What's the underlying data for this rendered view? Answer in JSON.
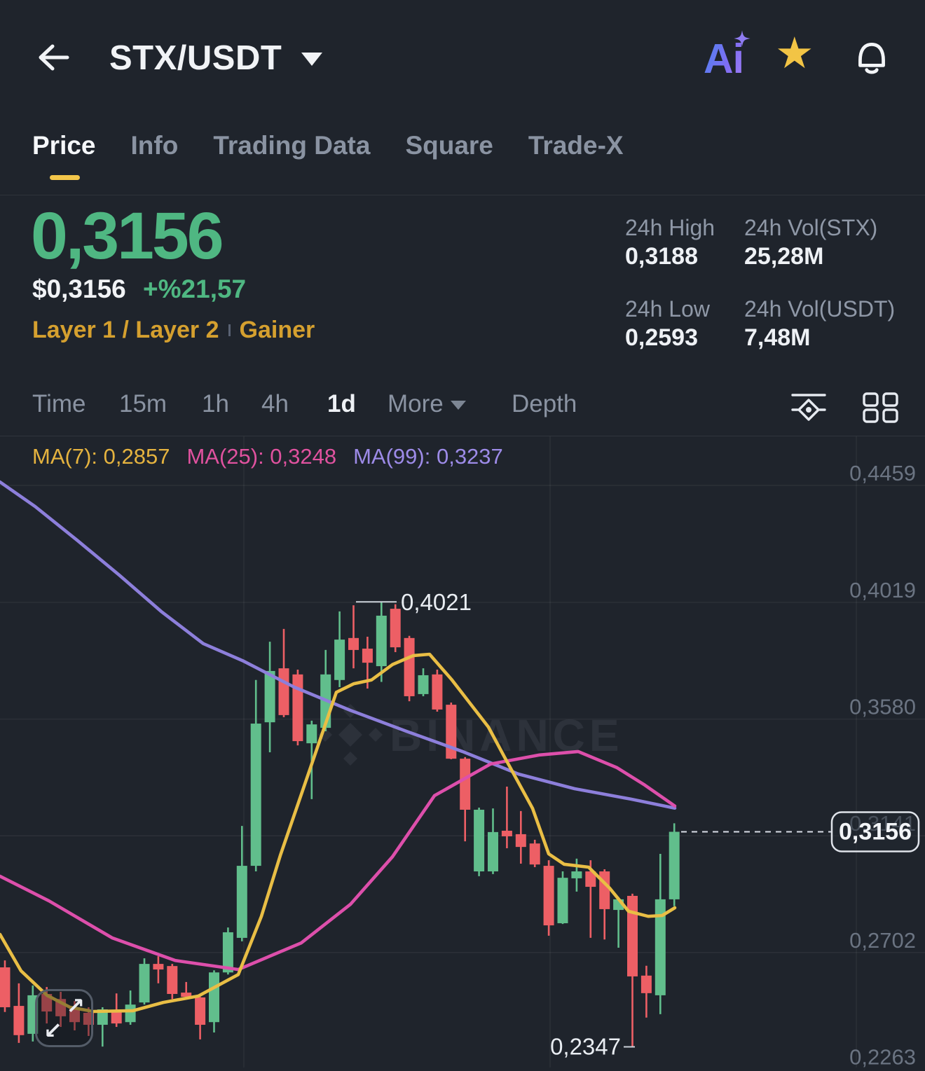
{
  "header": {
    "symbol": "STX/USDT",
    "icons": {
      "back": "back-arrow-icon",
      "symbol_caret": "chevron-down-icon",
      "ai": "ai-assistant-icon",
      "favorite": "star-icon",
      "alerts": "bell-icon"
    }
  },
  "tabs": {
    "items": [
      "Price",
      "Info",
      "Trading Data",
      "Square",
      "Trade-X"
    ],
    "active": "Price"
  },
  "summary": {
    "last_price": "0,3156",
    "usd_price": "$0,3156",
    "change": "+%21,57",
    "tags": [
      "Layer 1 / Layer 2",
      "Gainer"
    ],
    "stats": [
      {
        "label": "24h High",
        "value": "0,3188"
      },
      {
        "label": "24h Vol(STX)",
        "value": "25,28M"
      },
      {
        "label": "24h Low",
        "value": "0,2593"
      },
      {
        "label": "24h Vol(USDT)",
        "value": "7,48M"
      }
    ]
  },
  "toolbar": {
    "timeframes": [
      "Time",
      "15m",
      "1h",
      "4h",
      "1d"
    ],
    "active": "1d",
    "more_label": "More",
    "depth_label": "Depth",
    "icons": [
      "indicator-settings-icon",
      "layout-grid-icon"
    ]
  },
  "colors": {
    "up": "#61BE8C",
    "down": "#ED5F65",
    "price_green": "#4FB782",
    "gold": "#D5A02F",
    "accent_yellow": "#F3C64A",
    "ma7": "#E9BE45",
    "ma25": "#DD4FAB",
    "ma99": "#8D7FDB"
  },
  "chart_data": {
    "type": "candlestick",
    "pair": "STX/USDT",
    "interval": "1d",
    "watermark": "BINANCE",
    "grid": true,
    "legend_position": "top-left",
    "ma_legend": [
      {
        "label": "MA(7):",
        "value": "0,2857",
        "color": "#E5B33F"
      },
      {
        "label": "MA(25):",
        "value": "0,3248",
        "color": "#E0529F"
      },
      {
        "label": "MA(99):",
        "value": "0,3237",
        "color": "#9D8BE8"
      }
    ],
    "y_axis_ticks": [
      {
        "label": "0,4459",
        "price": 0.4459
      },
      {
        "label": "0,4019",
        "price": 0.4019
      },
      {
        "label": "0,3580",
        "price": 0.358
      },
      {
        "label": "0,3141",
        "price": 0.3141
      },
      {
        "label": "0,2702",
        "price": 0.2702
      },
      {
        "label": "0,2263",
        "price": 0.2263
      }
    ],
    "ylim": [
      0.2263,
      0.4459
    ],
    "annotations": {
      "high": {
        "label": "0,4021",
        "price": 0.4021
      },
      "low": {
        "label": "0,2347",
        "price": 0.2347
      }
    },
    "last_price": {
      "label": "0,3156",
      "price": 0.3156
    },
    "candles_ohlc": [
      [
        0.2646,
        0.2672,
        0.2478,
        0.2496
      ],
      [
        0.2501,
        0.2586,
        0.2362,
        0.2391
      ],
      [
        0.2396,
        0.2578,
        0.2367,
        0.2541
      ],
      [
        0.2546,
        0.2572,
        0.2435,
        0.248
      ],
      [
        0.2527,
        0.2554,
        0.2422,
        0.2462
      ],
      [
        0.2493,
        0.2519,
        0.2409,
        0.244
      ],
      [
        0.2475,
        0.2496,
        0.2388,
        0.243
      ],
      [
        0.243,
        0.2496,
        0.2348,
        0.2488
      ],
      [
        0.2483,
        0.2548,
        0.2422,
        0.2435
      ],
      [
        0.244,
        0.2559,
        0.243,
        0.2506
      ],
      [
        0.2514,
        0.268,
        0.2506,
        0.2659
      ],
      [
        0.2659,
        0.2688,
        0.2586,
        0.2638
      ],
      [
        0.2651,
        0.2659,
        0.2527,
        0.2546
      ],
      [
        0.2551,
        0.2591,
        0.2533,
        0.2535
      ],
      [
        0.2533,
        0.2535,
        0.2375,
        0.243
      ],
      [
        0.244,
        0.2635,
        0.2401,
        0.2627
      ],
      [
        0.2627,
        0.2796,
        0.2619,
        0.2778
      ],
      [
        0.2757,
        0.3178,
        0.2744,
        0.3028
      ],
      [
        0.3028,
        0.3727,
        0.3007,
        0.3563
      ],
      [
        0.3568,
        0.3871,
        0.3455,
        0.3761
      ],
      [
        0.3771,
        0.3919,
        0.3587,
        0.3595
      ],
      [
        0.3748,
        0.3766,
        0.3481,
        0.3497
      ],
      [
        0.3489,
        0.3574,
        0.3279,
        0.356
      ],
      [
        0.3547,
        0.384,
        0.3534,
        0.3748
      ],
      [
        0.3727,
        0.3985,
        0.37,
        0.3879
      ],
      [
        0.3885,
        0.4008,
        0.3771,
        0.384
      ],
      [
        0.3845,
        0.389,
        0.3695,
        0.3792
      ],
      [
        0.3779,
        0.4021,
        0.372,
        0.3969
      ],
      [
        0.3995,
        0.4012,
        0.3832,
        0.385
      ],
      [
        0.3885,
        0.3893,
        0.3647,
        0.3666
      ],
      [
        0.3674,
        0.3771,
        0.3666,
        0.3745
      ],
      [
        0.3748,
        0.3766,
        0.3608,
        0.3616
      ],
      [
        0.3634,
        0.3642,
        0.3429,
        0.3431
      ],
      [
        0.3431,
        0.3437,
        0.312,
        0.3239
      ],
      [
        0.3007,
        0.3247,
        0.2989,
        0.3239
      ],
      [
        0.3007,
        0.3244,
        0.2997,
        0.3155
      ],
      [
        0.316,
        0.3326,
        0.3094,
        0.3139
      ],
      [
        0.3147,
        0.3234,
        0.3036,
        0.3099
      ],
      [
        0.3112,
        0.3126,
        0.3023,
        0.3033
      ],
      [
        0.3028,
        0.3049,
        0.2765,
        0.2804
      ],
      [
        0.2812,
        0.3007,
        0.2809,
        0.2983
      ],
      [
        0.2981,
        0.3055,
        0.2931,
        0.3007
      ],
      [
        0.3007,
        0.3049,
        0.2757,
        0.2949
      ],
      [
        0.3007,
        0.3015,
        0.2751,
        0.2865
      ],
      [
        0.2862,
        0.291,
        0.272,
        0.2902
      ],
      [
        0.2915,
        0.2923,
        0.2347,
        0.2612
      ],
      [
        0.2615,
        0.2652,
        0.2457,
        0.2549
      ],
      [
        0.2541,
        0.3073,
        0.247,
        0.2902
      ],
      [
        0.2902,
        0.3188,
        0.2876,
        0.3156
      ]
    ],
    "ma_lines": [
      {
        "name": "MA(7)",
        "period": 7,
        "color": "#E9BE45",
        "points": [
          [
            0,
            0.277
          ],
          [
            30,
            0.2633
          ],
          [
            67,
            0.2541
          ],
          [
            100,
            0.2496
          ],
          [
            133,
            0.248
          ],
          [
            190,
            0.2483
          ],
          [
            233,
            0.2514
          ],
          [
            283,
            0.2538
          ],
          [
            340,
            0.2619
          ],
          [
            373,
            0.2838
          ],
          [
            400,
            0.3067
          ],
          [
            430,
            0.3297
          ],
          [
            455,
            0.3489
          ],
          [
            480,
            0.3681
          ],
          [
            505,
            0.3713
          ],
          [
            530,
            0.3727
          ],
          [
            560,
            0.3785
          ],
          [
            590,
            0.3819
          ],
          [
            613,
            0.3824
          ],
          [
            645,
            0.3727
          ],
          [
            670,
            0.3642
          ],
          [
            697,
            0.355
          ],
          [
            720,
            0.3437
          ],
          [
            760,
            0.3244
          ],
          [
            783,
            0.3073
          ],
          [
            805,
            0.3034
          ],
          [
            840,
            0.3023
          ],
          [
            870,
            0.2944
          ],
          [
            897,
            0.2857
          ],
          [
            925,
            0.2838
          ],
          [
            945,
            0.2841
          ],
          [
            963,
            0.287
          ]
        ]
      },
      {
        "name": "MA(25)",
        "period": 25,
        "color": "#DD4FAB",
        "points": [
          [
            0,
            0.2989
          ],
          [
            70,
            0.2896
          ],
          [
            160,
            0.2757
          ],
          [
            250,
            0.2672
          ],
          [
            340,
            0.2638
          ],
          [
            430,
            0.2738
          ],
          [
            500,
            0.2883
          ],
          [
            560,
            0.3062
          ],
          [
            620,
            0.3292
          ],
          [
            700,
            0.3411
          ],
          [
            770,
            0.3445
          ],
          [
            825,
            0.3458
          ],
          [
            880,
            0.3398
          ],
          [
            920,
            0.3332
          ],
          [
            963,
            0.3253
          ]
        ]
      },
      {
        "name": "MA(99)",
        "period": 99,
        "color": "#8D7FDB",
        "points": [
          [
            0,
            0.4472
          ],
          [
            50,
            0.438
          ],
          [
            110,
            0.4253
          ],
          [
            170,
            0.4122
          ],
          [
            230,
            0.3985
          ],
          [
            290,
            0.3864
          ],
          [
            346,
            0.38
          ],
          [
            420,
            0.37
          ],
          [
            500,
            0.3613
          ],
          [
            580,
            0.3534
          ],
          [
            660,
            0.3458
          ],
          [
            740,
            0.3373
          ],
          [
            820,
            0.3318
          ],
          [
            900,
            0.3279
          ],
          [
            963,
            0.3245
          ]
        ]
      }
    ]
  }
}
